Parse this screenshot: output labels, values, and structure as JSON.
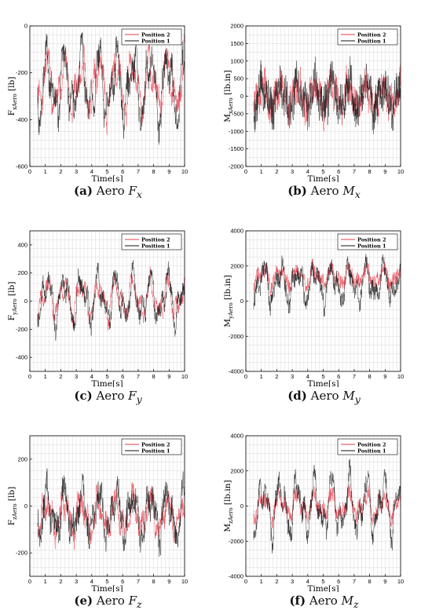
{
  "chart_data": [
    {
      "type": "line",
      "caption": {
        "label": "(a)",
        "prefix": "Aero",
        "var": "F",
        "sub": "x"
      },
      "ylabel": "F",
      "ylabel_sub": "xAero",
      "ylabel_unit": "[lb]",
      "xlabel": "Time[s]",
      "xlim": [
        0,
        10
      ],
      "ylim": [
        -600,
        0
      ],
      "xticks": [
        0,
        1,
        2,
        3,
        4,
        5,
        6,
        7,
        8,
        9,
        10
      ],
      "yticks": [
        -600,
        -400,
        -200,
        0
      ],
      "grid": true,
      "legend": "top-right",
      "series": [
        {
          "name": "Position 2",
          "color": "#e63d4a",
          "mean": -250,
          "amp": 90,
          "noise": 45,
          "seed": 11
        },
        {
          "name": "Position 1",
          "color": "#111111",
          "mean": -250,
          "amp": 110,
          "noise": 55,
          "seed": 3
        }
      ]
    },
    {
      "type": "line",
      "caption": {
        "label": "(b)",
        "prefix": "Aero",
        "var": "M",
        "sub": "x"
      },
      "ylabel": "M",
      "ylabel_sub": "xAero",
      "ylabel_unit": "[lb.in]",
      "xlabel": "Time[s]",
      "xlim": [
        0,
        10
      ],
      "ylim": [
        -2000,
        2000
      ],
      "xticks": [
        0,
        1,
        2,
        3,
        4,
        5,
        6,
        7,
        8,
        9,
        10
      ],
      "yticks": [
        -2000,
        -1500,
        -1000,
        -500,
        0,
        500,
        1000,
        1500,
        2000
      ],
      "grid": true,
      "legend": "top-right",
      "series": [
        {
          "name": "Position 2",
          "color": "#e63d4a",
          "mean": 0,
          "amp": 300,
          "noise": 450,
          "seed": 21
        },
        {
          "name": "Position 1",
          "color": "#111111",
          "mean": 0,
          "amp": 350,
          "noise": 550,
          "seed": 5
        }
      ]
    },
    {
      "type": "line",
      "caption": {
        "label": "(c)",
        "prefix": "Aero",
        "var": "F",
        "sub": "y"
      },
      "ylabel": "F",
      "ylabel_sub": "yAero",
      "ylabel_unit": "[lb]",
      "xlabel": "Time[s]",
      "xlim": [
        0,
        10
      ],
      "ylim": [
        -500,
        500
      ],
      "xticks": [
        0,
        1,
        2,
        3,
        4,
        5,
        6,
        7,
        8,
        9,
        10
      ],
      "yticks": [
        -400,
        -200,
        0,
        200,
        400
      ],
      "grid": true,
      "legend": "top-right",
      "series": [
        {
          "name": "Position 2",
          "color": "#e63d4a",
          "mean": 20,
          "amp": 100,
          "noise": 45,
          "seed": 31
        },
        {
          "name": "Position 1",
          "color": "#111111",
          "mean": 20,
          "amp": 130,
          "noise": 55,
          "seed": 7
        }
      ]
    },
    {
      "type": "line",
      "caption": {
        "label": "(d)",
        "prefix": "Aero",
        "var": "M",
        "sub": "y"
      },
      "ylabel": "M",
      "ylabel_sub": "yAero",
      "ylabel_unit": "[lb.in]",
      "xlabel": "Time[s]",
      "xlim": [
        0,
        10
      ],
      "ylim": [
        -4000,
        4000
      ],
      "xticks": [
        0,
        1,
        2,
        3,
        4,
        5,
        6,
        7,
        8,
        9,
        10
      ],
      "yticks": [
        -4000,
        -2000,
        0,
        2000,
        4000
      ],
      "grid": true,
      "legend": "top-right",
      "series": [
        {
          "name": "Position 2",
          "color": "#e63d4a",
          "mean": 1400,
          "amp": 400,
          "noise": 400,
          "seed": 41
        },
        {
          "name": "Position 1",
          "color": "#111111",
          "mean": 1000,
          "amp": 800,
          "noise": 500,
          "seed": 9
        }
      ]
    },
    {
      "type": "line",
      "caption": {
        "label": "(e)",
        "prefix": "Aero",
        "var": "F",
        "sub": "z"
      },
      "ylabel": "F",
      "ylabel_sub": "zAero",
      "ylabel_unit": "[lb]",
      "xlabel": "Time[s]",
      "xlim": [
        0,
        10
      ],
      "ylim": [
        -300,
        300
      ],
      "xticks": [
        0,
        1,
        2,
        3,
        4,
        5,
        6,
        7,
        8,
        9,
        10
      ],
      "yticks": [
        -200,
        0,
        200
      ],
      "grid": true,
      "legend": "top-right",
      "series": [
        {
          "name": "Position 2",
          "color": "#e63d4a",
          "mean": -40,
          "amp": 60,
          "noise": 45,
          "seed": 51
        },
        {
          "name": "Position 1",
          "color": "#111111",
          "mean": -30,
          "amp": 80,
          "noise": 55,
          "seed": 13
        }
      ]
    },
    {
      "type": "line",
      "caption": {
        "label": "(f)",
        "prefix": "Aero",
        "var": "M",
        "sub": "z"
      },
      "ylabel": "M",
      "ylabel_sub": "zAero",
      "ylabel_unit": "[lb.in]",
      "xlabel": "Time[s]",
      "xlim": [
        0,
        10
      ],
      "ylim": [
        -4000,
        4000
      ],
      "xticks": [
        0,
        1,
        2,
        3,
        4,
        5,
        6,
        7,
        8,
        9,
        10
      ],
      "yticks": [
        -4000,
        -2000,
        0,
        2000,
        4000
      ],
      "grid": true,
      "legend": "top-right",
      "series": [
        {
          "name": "Position 2",
          "color": "#e63d4a",
          "mean": 0,
          "amp": 500,
          "noise": 450,
          "seed": 61
        },
        {
          "name": "Position 1",
          "color": "#111111",
          "mean": 0,
          "amp": 1200,
          "noise": 500,
          "seed": 17
        }
      ]
    }
  ]
}
